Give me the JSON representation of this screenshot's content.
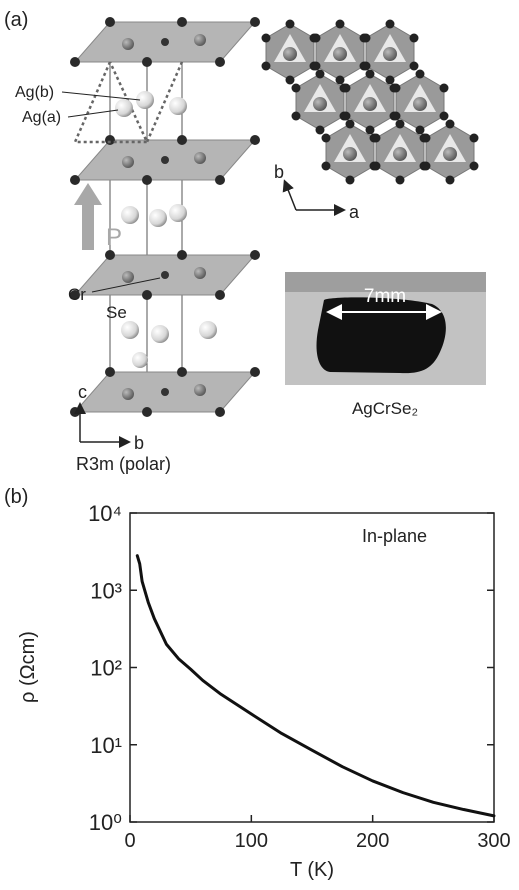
{
  "panel_a": {
    "label": "(a)",
    "structure": {
      "ag_b": "Ag(b)",
      "ag_a": "Ag(a)",
      "polarization": "P",
      "cr": "Cr",
      "se": "Se",
      "axis_c": "c",
      "axis_b": "b",
      "space_group": "R3m (polar)"
    },
    "layer_view": {
      "axis_b": "b",
      "axis_a": "a"
    },
    "photo": {
      "scale": "7mm",
      "caption": "AgCrSe₂"
    }
  },
  "chart_data": {
    "type": "line",
    "panel_label": "(b)",
    "annotation": "In-plane",
    "x_label": "T (K)",
    "y_label": "ρ (Ωcm)",
    "color": "#111111",
    "ylog": true,
    "x": [
      6,
      8,
      10,
      15,
      20,
      30,
      40,
      50,
      60,
      75,
      100,
      125,
      150,
      175,
      200,
      225,
      250,
      275,
      300
    ],
    "values": [
      2800,
      2200,
      1300,
      700,
      430,
      200,
      130,
      95,
      68,
      45,
      25,
      14,
      8.5,
      5.2,
      3.4,
      2.4,
      1.8,
      1.45,
      1.2
    ],
    "xlim": [
      0,
      300
    ],
    "xticks": [
      0,
      100,
      200,
      300
    ],
    "ylim": [
      1,
      10000
    ],
    "yticks": [
      {
        "value": 1,
        "label": "10⁰"
      },
      {
        "value": 10,
        "label": "10¹"
      },
      {
        "value": 100,
        "label": "10²"
      },
      {
        "value": 1000,
        "label": "10³"
      },
      {
        "value": 10000,
        "label": "10⁴"
      }
    ]
  }
}
